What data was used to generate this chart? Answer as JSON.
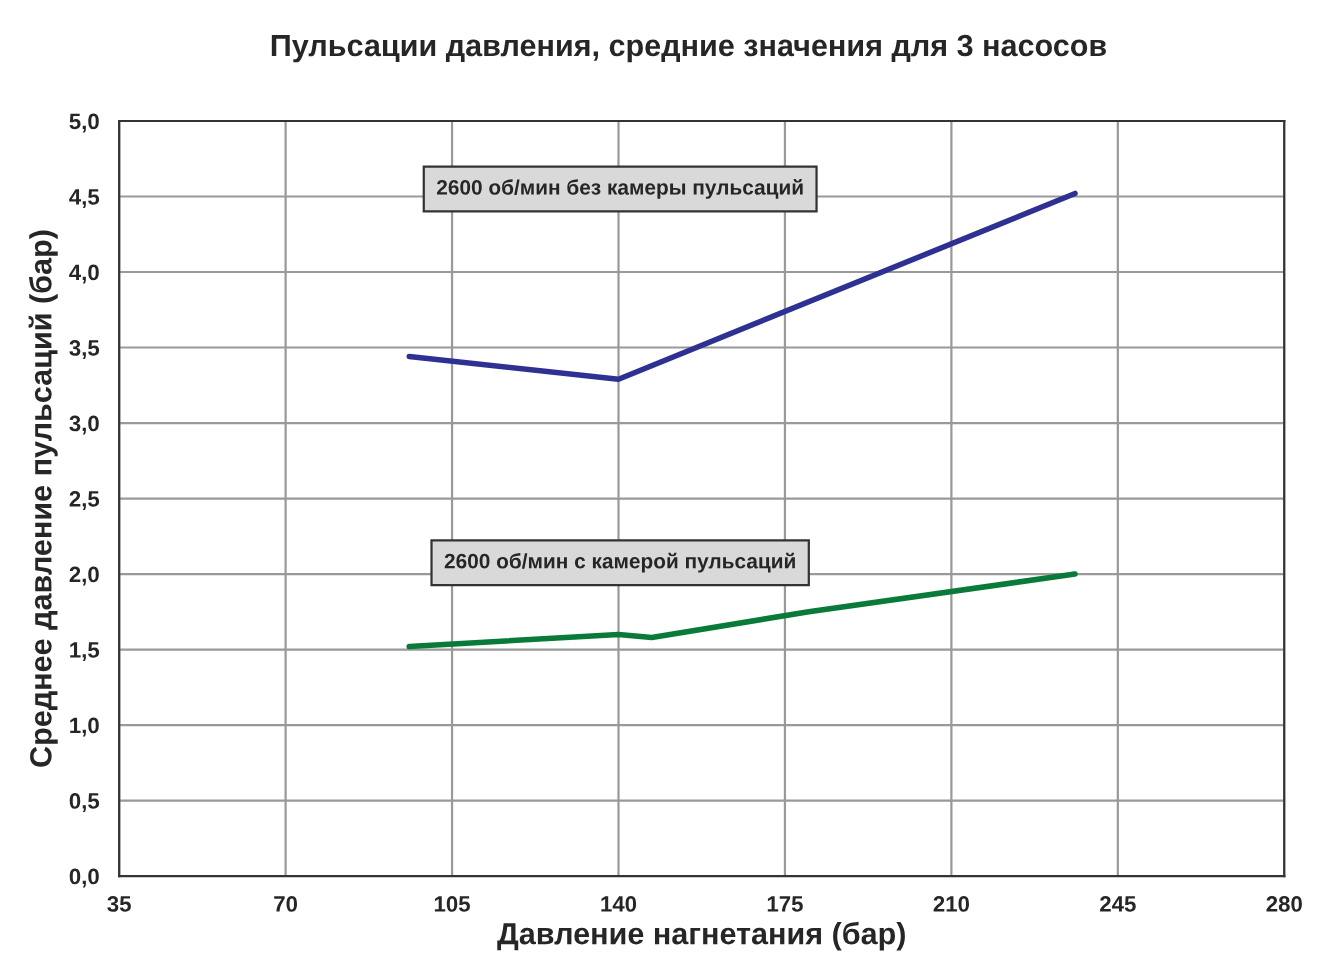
{
  "chart_data": {
    "type": "line",
    "title": "Пульсации давления, средние значения для 3 насосов",
    "xlabel": "Давление нагнетания (бар)",
    "ylabel": "Среднее давление пульсаций (бар)",
    "series": [
      {
        "color": "#2e3192",
        "x": [
          96,
          140,
          236
        ],
        "values": [
          3.44,
          3.29,
          4.52
        ]
      },
      {
        "color": "#0a7a3a",
        "x": [
          96,
          140,
          147,
          180,
          236
        ],
        "values": [
          1.52,
          1.6,
          1.58,
          1.75,
          2.0
        ]
      }
    ],
    "xlim": [
      35,
      280
    ],
    "xticks": [
      35,
      70,
      105,
      140,
      175,
      210,
      245,
      280
    ],
    "ylim": [
      0,
      5
    ],
    "yticks": [
      {
        "value": 0,
        "label": "0,0"
      },
      {
        "value": 0.5,
        "label": "0,5"
      },
      {
        "value": 1,
        "label": "1,0"
      },
      {
        "value": 1.5,
        "label": "1,5"
      },
      {
        "value": 2,
        "label": "2,0"
      },
      {
        "value": 2.5,
        "label": "2,5"
      },
      {
        "value": 3,
        "label": "3,0"
      },
      {
        "value": 3.5,
        "label": "3,5"
      },
      {
        "value": 4,
        "label": "4,0"
      },
      {
        "value": 4.5,
        "label": "4,5"
      },
      {
        "value": 5,
        "label": "5,0"
      }
    ],
    "annotations": [
      "2600 об/мин без камеры пульсаций",
      "2600 об/мин с камерой пульсаций"
    ],
    "grid": true
  }
}
